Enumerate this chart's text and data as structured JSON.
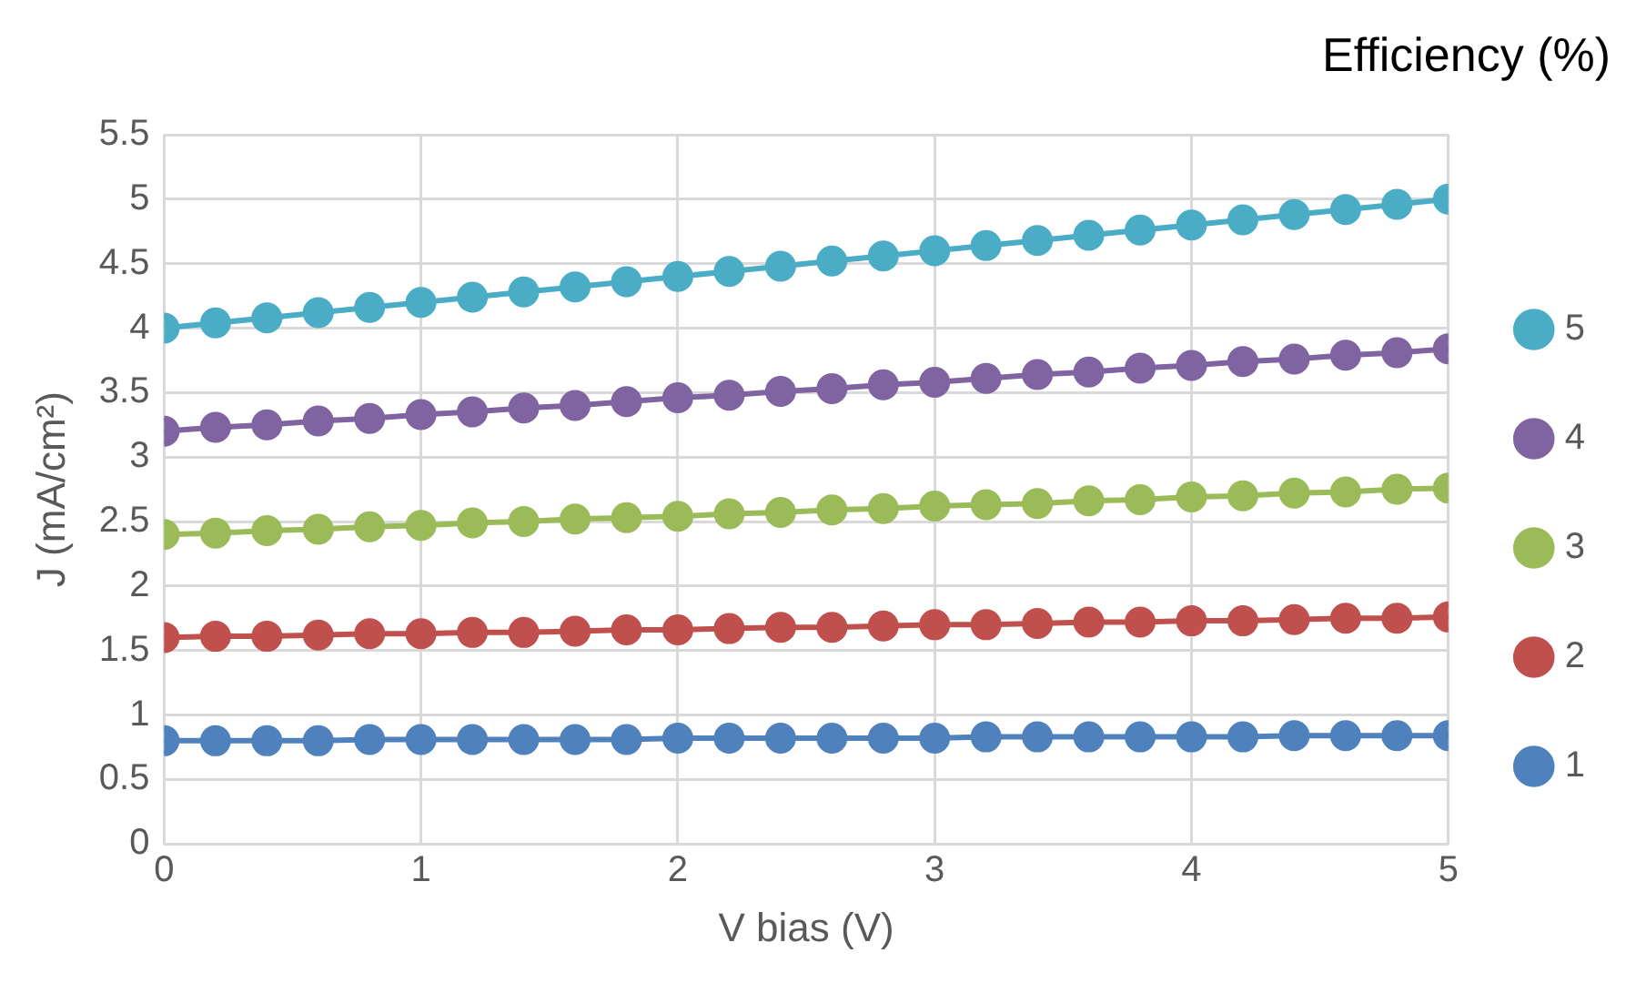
{
  "chart_data": {
    "type": "line",
    "xlabel": "V bias (V)",
    "ylabel": "J (mA/cm²)",
    "legend_title": "Efficiency (%)",
    "x": [
      0,
      0.2,
      0.4,
      0.6,
      0.8,
      1,
      1.2,
      1.4,
      1.6,
      1.8,
      2,
      2.2,
      2.4,
      2.6,
      2.8,
      3,
      3.2,
      3.4,
      3.6,
      3.8,
      4,
      4.2,
      4.4,
      4.6,
      4.8,
      5
    ],
    "series": [
      {
        "name": "1",
        "color": "#4f81bd",
        "values": [
          0.8,
          0.8,
          0.8,
          0.8,
          0.81,
          0.81,
          0.81,
          0.81,
          0.81,
          0.81,
          0.82,
          0.82,
          0.82,
          0.82,
          0.82,
          0.82,
          0.83,
          0.83,
          0.83,
          0.83,
          0.83,
          0.83,
          0.84,
          0.84,
          0.84,
          0.84
        ]
      },
      {
        "name": "2",
        "color": "#c0504d",
        "values": [
          1.6,
          1.61,
          1.61,
          1.62,
          1.63,
          1.63,
          1.64,
          1.64,
          1.65,
          1.66,
          1.66,
          1.67,
          1.68,
          1.68,
          1.69,
          1.7,
          1.7,
          1.71,
          1.72,
          1.72,
          1.73,
          1.73,
          1.74,
          1.75,
          1.75,
          1.76
        ]
      },
      {
        "name": "3",
        "color": "#9bbb59",
        "values": [
          2.4,
          2.41,
          2.43,
          2.44,
          2.46,
          2.47,
          2.49,
          2.5,
          2.52,
          2.53,
          2.54,
          2.56,
          2.57,
          2.59,
          2.6,
          2.62,
          2.63,
          2.64,
          2.66,
          2.67,
          2.69,
          2.7,
          2.72,
          2.73,
          2.75,
          2.76
        ]
      },
      {
        "name": "4",
        "color": "#8064a2",
        "values": [
          3.2,
          3.23,
          3.25,
          3.28,
          3.3,
          3.33,
          3.35,
          3.38,
          3.4,
          3.43,
          3.46,
          3.48,
          3.51,
          3.53,
          3.56,
          3.58,
          3.61,
          3.64,
          3.66,
          3.69,
          3.71,
          3.74,
          3.76,
          3.79,
          3.81,
          3.84
        ]
      },
      {
        "name": "5",
        "color": "#4bacc6",
        "values": [
          4.0,
          4.04,
          4.08,
          4.12,
          4.16,
          4.2,
          4.24,
          4.28,
          4.32,
          4.36,
          4.4,
          4.44,
          4.48,
          4.52,
          4.56,
          4.6,
          4.64,
          4.68,
          4.72,
          4.76,
          4.8,
          4.84,
          4.88,
          4.92,
          4.96,
          5.0
        ]
      }
    ],
    "xlim": [
      0,
      5
    ],
    "xticks": [
      0,
      1,
      2,
      3,
      4,
      5
    ],
    "ylim": [
      0,
      5.5
    ],
    "yticks": [
      0,
      0.5,
      1,
      1.5,
      2,
      2.5,
      3,
      3.5,
      4,
      4.5,
      5,
      5.5
    ],
    "grid": true,
    "legend": "right",
    "marker": "circle",
    "line_style": "solid"
  }
}
